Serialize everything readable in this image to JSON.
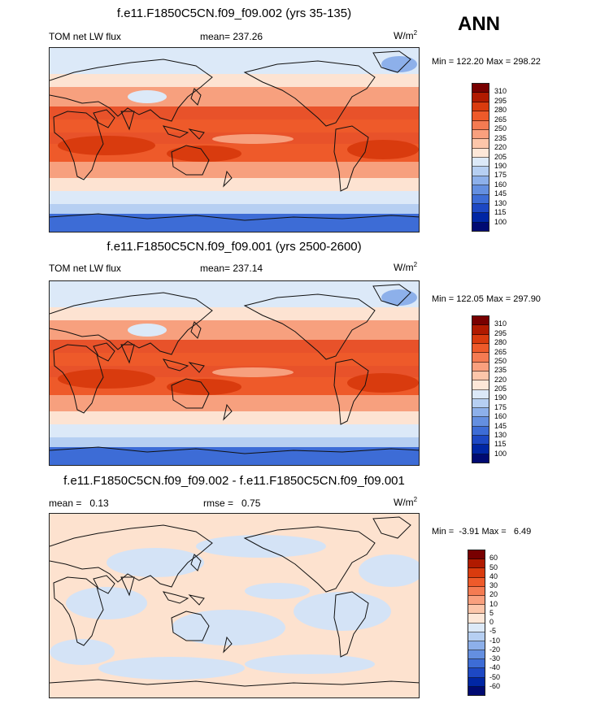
{
  "season": "ANN",
  "panels": [
    {
      "title": "f.e11.F1850C5CN.f09_f09.002 (yrs 35-135)",
      "left_label": "TOM net LW flux",
      "center_label": "mean= 237.26",
      "units_base": "W/m",
      "units_sup": "2",
      "minmax": "Min = 122.20 Max = 298.22",
      "colorbar_levels": [
        "310",
        "295",
        "280",
        "265",
        "250",
        "235",
        "220",
        "205",
        "190",
        "175",
        "160",
        "145",
        "130",
        "115",
        "100"
      ]
    },
    {
      "title": "f.e11.F1850C5CN.f09_f09.001 (yrs 2500-2600)",
      "left_label": "TOM net LW flux",
      "center_label": "mean= 237.14",
      "units_base": "W/m",
      "units_sup": "2",
      "minmax": "Min = 122.05 Max = 297.90",
      "colorbar_levels": [
        "310",
        "295",
        "280",
        "265",
        "250",
        "235",
        "220",
        "205",
        "190",
        "175",
        "160",
        "145",
        "130",
        "115",
        "100"
      ]
    },
    {
      "title": "f.e11.F1850C5CN.f09_f09.002 - f.e11.F1850C5CN.f09_f09.001",
      "left_label": "mean =   0.13",
      "center_label": "rmse =   0.75",
      "units_base": "W/m",
      "units_sup": "2",
      "minmax": "Min =  -3.91 Max =   6.49",
      "colorbar_levels": [
        "60",
        "50",
        "40",
        "30",
        "20",
        "10",
        "5",
        "0",
        "-5",
        "-10",
        "-20",
        "-30",
        "-40",
        "-50",
        "-60"
      ]
    }
  ],
  "colors": {
    "palette": [
      "#780000",
      "#b01a00",
      "#d93b0e",
      "#ee5a2a",
      "#f47b52",
      "#f9a07e",
      "#fcc6aa",
      "#fde7d8",
      "#dce9f8",
      "#b6cff2",
      "#8db0ea",
      "#648fe0",
      "#3d6cd6",
      "#1d48c4",
      "#0026a4",
      "#000a72"
    ],
    "ocean_mid": "#e8522a",
    "ocean_sub": "#f7a07e",
    "ocean_high": "#fde3d2",
    "polar_light": "#dce9f8",
    "polar_dark": "#3d6cd6",
    "diff_pos": "#fde2cf",
    "diff_neg": "#d4e3f6",
    "coast": "#111111"
  }
}
